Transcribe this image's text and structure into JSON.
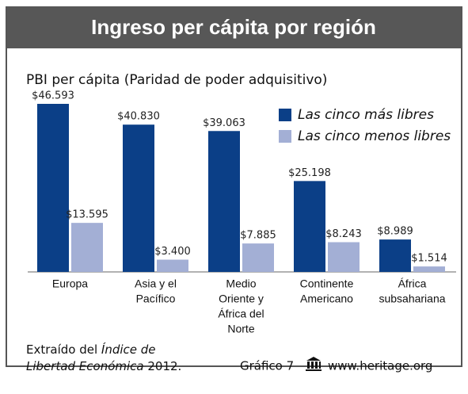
{
  "title": "Ingreso per cápita por región",
  "chart_data": {
    "type": "bar",
    "subtitle": "PBI per cápita (Paridad de poder adquisitivo)",
    "categories": [
      [
        "Europa"
      ],
      [
        "Asia y el",
        "Pacífico"
      ],
      [
        "Medio",
        "Oriente y",
        "África del",
        "Norte"
      ],
      [
        "Continente",
        "Americano"
      ],
      [
        "África",
        "subsahariana"
      ]
    ],
    "series": [
      {
        "name": "Las cinco más libres",
        "color": "#0b3f87",
        "values": [
          46593,
          40830,
          39063,
          25198,
          8989
        ],
        "value_labels": [
          "$46.593",
          "$40.830",
          "$39.063",
          "$25.198",
          "$8.989"
        ]
      },
      {
        "name": "Las cinco menos libres",
        "color": "#a3afd5",
        "values": [
          13595,
          3400,
          7885,
          8243,
          1514
        ],
        "value_labels": [
          "$13.595",
          "$3.400",
          "$7.885",
          "$8.243",
          "$1.514"
        ]
      }
    ]
  },
  "footer": {
    "source": [
      "Extraído del ",
      "Índice de",
      "Libertad Económica",
      " 2012."
    ],
    "figure": "Gráfico 7",
    "site": "www.heritage.org"
  }
}
